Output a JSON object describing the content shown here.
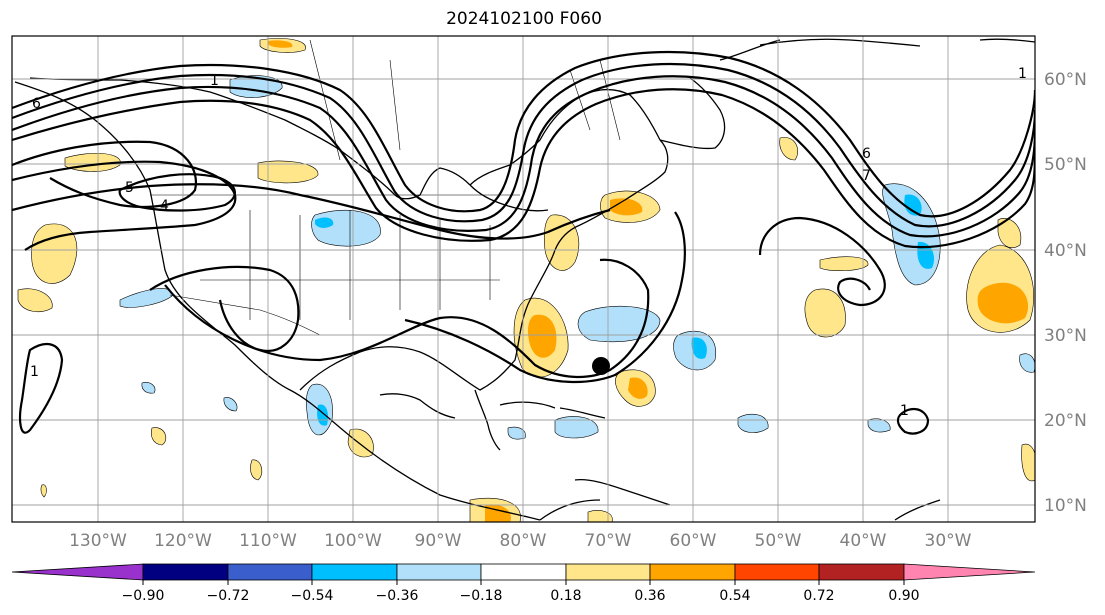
{
  "title": "2024102100 F060",
  "map": {
    "projection": "PlateCarree",
    "lon_range": [
      -138,
      -16
    ],
    "lat_range": [
      8,
      65
    ],
    "gridlines": true,
    "lon_ticks": [
      "130°W",
      "120°W",
      "110°W",
      "100°W",
      "90°W",
      "80°W",
      "70°W",
      "60°W",
      "50°W",
      "40°W",
      "30°W"
    ],
    "lat_ticks": [
      "10°N",
      "20°N",
      "30°N",
      "40°N",
      "50°N",
      "60°N"
    ],
    "contour_labels": [
      "6",
      "5",
      "4",
      "1",
      "1",
      "7",
      "6",
      "1",
      "1"
    ],
    "marker": "storm-center-dot"
  },
  "colorbar": {
    "ticks": [
      "−0.90",
      "−0.72",
      "−0.54",
      "−0.36",
      "−0.18",
      "0.18",
      "0.36",
      "0.54",
      "0.72",
      "0.90"
    ],
    "colors": [
      "#9932CC",
      "#000080",
      "#3A5FCD",
      "#00BFFF",
      "#B2E0FA",
      "#FFFFFF",
      "#FFE68A",
      "#FFA500",
      "#FF4500",
      "#B22222",
      "#FF85B0"
    ]
  }
}
